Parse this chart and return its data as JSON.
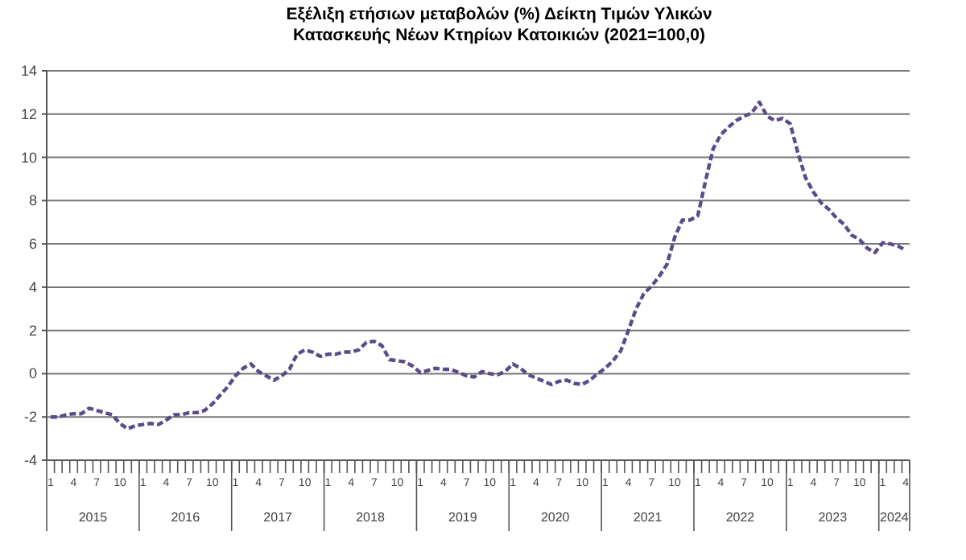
{
  "chart_data": {
    "type": "line",
    "title": "Εξέλιξη ετήσιων μεταβολών (%) Δείκτη Τιμών Υλικών\nΚατασκευής Νέων Κτηρίων Κατοικιών (2021=100,0)",
    "categories": [
      "1",
      null,
      null,
      "4",
      null,
      null,
      "7",
      null,
      null,
      "10",
      null,
      null,
      "1",
      null,
      null,
      "4",
      null,
      null,
      "7",
      null,
      null,
      "10",
      null,
      null,
      "1",
      null,
      null,
      "4",
      null,
      null,
      "7",
      null,
      null,
      "10",
      null,
      null,
      "1",
      null,
      null,
      "4",
      null,
      null,
      "7",
      null,
      null,
      "10",
      null,
      null,
      "1",
      null,
      null,
      "4",
      null,
      null,
      "7",
      null,
      null,
      "10",
      null,
      null,
      "1",
      null,
      null,
      "4",
      null,
      null,
      "7",
      null,
      null,
      "10",
      null,
      null,
      "1",
      null,
      null,
      "4",
      null,
      null,
      "7",
      null,
      null,
      "10",
      null,
      null,
      "1",
      null,
      null,
      "4",
      null,
      null,
      "7",
      null,
      null,
      "10",
      null,
      null,
      "1",
      null,
      null,
      "4",
      null,
      null,
      "7",
      null,
      null,
      "10",
      null,
      null,
      "1",
      null,
      null,
      "4"
    ],
    "series": [
      {
        "color": "#5b4a8c",
        "values": [
          -2.0,
          -2.0,
          -1.9,
          -1.85,
          -1.85,
          -1.6,
          -1.7,
          -1.8,
          -1.9,
          -2.3,
          -2.55,
          -2.4,
          -2.35,
          -2.3,
          -2.35,
          -2.15,
          -1.9,
          -1.9,
          -1.8,
          -1.8,
          -1.7,
          -1.4,
          -1.0,
          -0.6,
          -0.1,
          0.25,
          0.45,
          0.1,
          -0.1,
          -0.3,
          -0.1,
          0.2,
          0.9,
          1.1,
          1.0,
          0.8,
          0.9,
          0.9,
          1.0,
          1.0,
          1.1,
          1.45,
          1.5,
          1.3,
          0.65,
          0.6,
          0.55,
          0.35,
          0.05,
          0.15,
          0.25,
          0.2,
          0.2,
          0.05,
          -0.1,
          -0.15,
          0.1,
          0.0,
          -0.05,
          0.1,
          0.45,
          0.25,
          -0.05,
          -0.2,
          -0.35,
          -0.5,
          -0.35,
          -0.3,
          -0.45,
          -0.5,
          -0.3,
          0.0,
          0.25,
          0.6,
          1.05,
          2.0,
          3.0,
          3.7,
          4.05,
          4.5,
          5.05,
          6.3,
          7.1,
          7.1,
          7.3,
          8.9,
          10.4,
          11.05,
          11.4,
          11.7,
          11.9,
          12.05,
          12.55,
          11.9,
          11.7,
          11.8,
          11.55,
          10.2,
          9.05,
          8.4,
          7.9,
          7.6,
          7.2,
          6.9,
          6.4,
          6.2,
          5.8,
          5.6,
          6.05,
          6.0,
          5.9,
          5.7
        ]
      }
    ],
    "ylim": [
      -4,
      14
    ],
    "yticks": [
      -4,
      -2,
      0,
      2,
      4,
      6,
      8,
      10,
      12,
      14
    ],
    "grid": "y",
    "line_style": "dashed",
    "marker": "none",
    "annotations": [
      "2015",
      "2016",
      "2017",
      "2018",
      "2019",
      "2020",
      "2021",
      "2022",
      "2023",
      "2024"
    ]
  }
}
